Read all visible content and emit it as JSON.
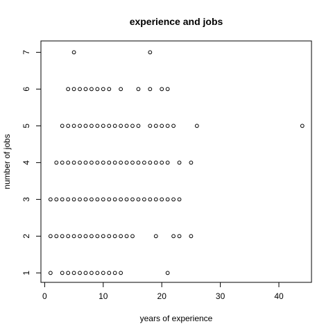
{
  "chart_data": {
    "type": "scatter",
    "title": "experience and jobs",
    "xlabel": "years of experience",
    "ylabel": "number of jobs",
    "xlim": [
      0,
      45
    ],
    "ylim": [
      1,
      7
    ],
    "x_ticks": [
      0,
      10,
      20,
      30,
      40
    ],
    "y_ticks": [
      1,
      2,
      3,
      4,
      5,
      6,
      7
    ],
    "grid": false,
    "points": [
      {
        "x": 5,
        "y": 7
      },
      {
        "x": 18,
        "y": 7
      },
      {
        "x": 4,
        "y": 6
      },
      {
        "x": 5,
        "y": 6
      },
      {
        "x": 6,
        "y": 6
      },
      {
        "x": 7,
        "y": 6
      },
      {
        "x": 8,
        "y": 6
      },
      {
        "x": 9,
        "y": 6
      },
      {
        "x": 10,
        "y": 6
      },
      {
        "x": 11,
        "y": 6
      },
      {
        "x": 13,
        "y": 6
      },
      {
        "x": 16,
        "y": 6
      },
      {
        "x": 18,
        "y": 6
      },
      {
        "x": 20,
        "y": 6
      },
      {
        "x": 21,
        "y": 6
      },
      {
        "x": 3,
        "y": 5
      },
      {
        "x": 4,
        "y": 5
      },
      {
        "x": 5,
        "y": 5
      },
      {
        "x": 6,
        "y": 5
      },
      {
        "x": 7,
        "y": 5
      },
      {
        "x": 8,
        "y": 5
      },
      {
        "x": 9,
        "y": 5
      },
      {
        "x": 10,
        "y": 5
      },
      {
        "x": 11,
        "y": 5
      },
      {
        "x": 12,
        "y": 5
      },
      {
        "x": 13,
        "y": 5
      },
      {
        "x": 14,
        "y": 5
      },
      {
        "x": 15,
        "y": 5
      },
      {
        "x": 16,
        "y": 5
      },
      {
        "x": 18,
        "y": 5
      },
      {
        "x": 19,
        "y": 5
      },
      {
        "x": 20,
        "y": 5
      },
      {
        "x": 21,
        "y": 5
      },
      {
        "x": 22,
        "y": 5
      },
      {
        "x": 26,
        "y": 5
      },
      {
        "x": 44,
        "y": 5
      },
      {
        "x": 2,
        "y": 4
      },
      {
        "x": 3,
        "y": 4
      },
      {
        "x": 4,
        "y": 4
      },
      {
        "x": 5,
        "y": 4
      },
      {
        "x": 6,
        "y": 4
      },
      {
        "x": 7,
        "y": 4
      },
      {
        "x": 8,
        "y": 4
      },
      {
        "x": 9,
        "y": 4
      },
      {
        "x": 10,
        "y": 4
      },
      {
        "x": 11,
        "y": 4
      },
      {
        "x": 12,
        "y": 4
      },
      {
        "x": 13,
        "y": 4
      },
      {
        "x": 14,
        "y": 4
      },
      {
        "x": 15,
        "y": 4
      },
      {
        "x": 16,
        "y": 4
      },
      {
        "x": 17,
        "y": 4
      },
      {
        "x": 18,
        "y": 4
      },
      {
        "x": 19,
        "y": 4
      },
      {
        "x": 20,
        "y": 4
      },
      {
        "x": 21,
        "y": 4
      },
      {
        "x": 23,
        "y": 4
      },
      {
        "x": 25,
        "y": 4
      },
      {
        "x": 1,
        "y": 3
      },
      {
        "x": 2,
        "y": 3
      },
      {
        "x": 3,
        "y": 3
      },
      {
        "x": 4,
        "y": 3
      },
      {
        "x": 5,
        "y": 3
      },
      {
        "x": 6,
        "y": 3
      },
      {
        "x": 7,
        "y": 3
      },
      {
        "x": 8,
        "y": 3
      },
      {
        "x": 9,
        "y": 3
      },
      {
        "x": 10,
        "y": 3
      },
      {
        "x": 11,
        "y": 3
      },
      {
        "x": 12,
        "y": 3
      },
      {
        "x": 13,
        "y": 3
      },
      {
        "x": 14,
        "y": 3
      },
      {
        "x": 15,
        "y": 3
      },
      {
        "x": 16,
        "y": 3
      },
      {
        "x": 17,
        "y": 3
      },
      {
        "x": 18,
        "y": 3
      },
      {
        "x": 19,
        "y": 3
      },
      {
        "x": 20,
        "y": 3
      },
      {
        "x": 21,
        "y": 3
      },
      {
        "x": 22,
        "y": 3
      },
      {
        "x": 23,
        "y": 3
      },
      {
        "x": 1,
        "y": 2
      },
      {
        "x": 2,
        "y": 2
      },
      {
        "x": 3,
        "y": 2
      },
      {
        "x": 4,
        "y": 2
      },
      {
        "x": 5,
        "y": 2
      },
      {
        "x": 6,
        "y": 2
      },
      {
        "x": 7,
        "y": 2
      },
      {
        "x": 8,
        "y": 2
      },
      {
        "x": 9,
        "y": 2
      },
      {
        "x": 10,
        "y": 2
      },
      {
        "x": 11,
        "y": 2
      },
      {
        "x": 12,
        "y": 2
      },
      {
        "x": 13,
        "y": 2
      },
      {
        "x": 14,
        "y": 2
      },
      {
        "x": 15,
        "y": 2
      },
      {
        "x": 19,
        "y": 2
      },
      {
        "x": 22,
        "y": 2
      },
      {
        "x": 23,
        "y": 2
      },
      {
        "x": 25,
        "y": 2
      },
      {
        "x": 1,
        "y": 1
      },
      {
        "x": 3,
        "y": 1
      },
      {
        "x": 4,
        "y": 1
      },
      {
        "x": 5,
        "y": 1
      },
      {
        "x": 6,
        "y": 1
      },
      {
        "x": 7,
        "y": 1
      },
      {
        "x": 8,
        "y": 1
      },
      {
        "x": 9,
        "y": 1
      },
      {
        "x": 10,
        "y": 1
      },
      {
        "x": 11,
        "y": 1
      },
      {
        "x": 12,
        "y": 1
      },
      {
        "x": 13,
        "y": 1
      },
      {
        "x": 21,
        "y": 1
      }
    ]
  }
}
